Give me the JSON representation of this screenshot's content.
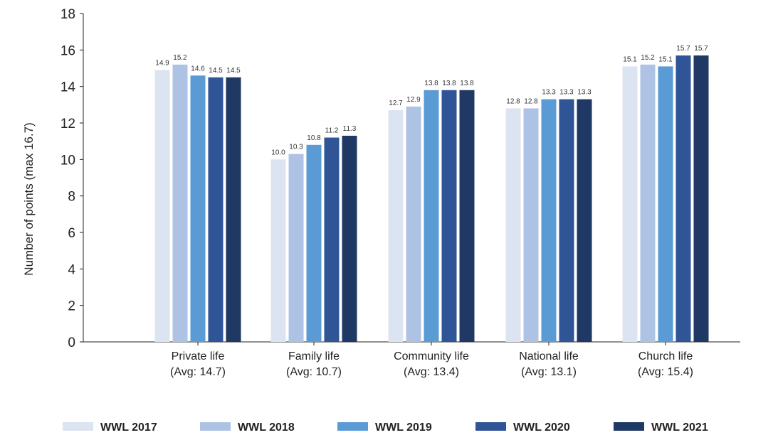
{
  "chart_data": {
    "type": "bar",
    "ylabel": "Number of points (max 16.7)",
    "ylim": [
      0,
      18
    ],
    "yticks": [
      0,
      2,
      4,
      6,
      8,
      10,
      12,
      14,
      16,
      18
    ],
    "grid": false,
    "legend_position": "bottom",
    "categories": [
      {
        "line1": "Private life",
        "line2": "(Avg: 14.7)"
      },
      {
        "line1": "Family life",
        "line2": "(Avg: 10.7)"
      },
      {
        "line1": "Community life",
        "line2": "(Avg: 13.4)"
      },
      {
        "line1": "National life",
        "line2": "(Avg: 13.1)"
      },
      {
        "line1": "Church life",
        "line2": "(Avg: 15.4)"
      }
    ],
    "series": [
      {
        "name": "WWL 2017",
        "color": "#dce4f2",
        "values": [
          14.9,
          10.0,
          12.7,
          12.8,
          15.1
        ],
        "labels": [
          "14.9",
          "10.0",
          "12.7",
          "12.8",
          "15.1"
        ]
      },
      {
        "name": "WWL 2018",
        "color": "#aec3e3",
        "values": [
          15.2,
          10.3,
          12.9,
          12.8,
          15.2
        ],
        "labels": [
          "15.2",
          "10.3",
          "12.9",
          "12.8",
          "15.2"
        ]
      },
      {
        "name": "WWL 2019",
        "color": "#5b9bd5",
        "values": [
          14.6,
          10.8,
          13.8,
          13.3,
          15.1
        ],
        "labels": [
          "14.6",
          "10.8",
          "13.8",
          "13.3",
          "15.1"
        ]
      },
      {
        "name": "WWL 2020",
        "color": "#2f5597",
        "values": [
          14.5,
          11.2,
          13.8,
          13.3,
          15.7
        ],
        "labels": [
          "14.5",
          "11.2",
          "13.8",
          "13.3",
          "15.7"
        ]
      },
      {
        "name": "WWL 2021",
        "color": "#1f3864",
        "values": [
          14.5,
          11.3,
          13.8,
          13.3,
          15.7
        ],
        "labels": [
          "14.5",
          "11.3",
          "13.8",
          "13.3",
          "15.7"
        ]
      }
    ]
  }
}
